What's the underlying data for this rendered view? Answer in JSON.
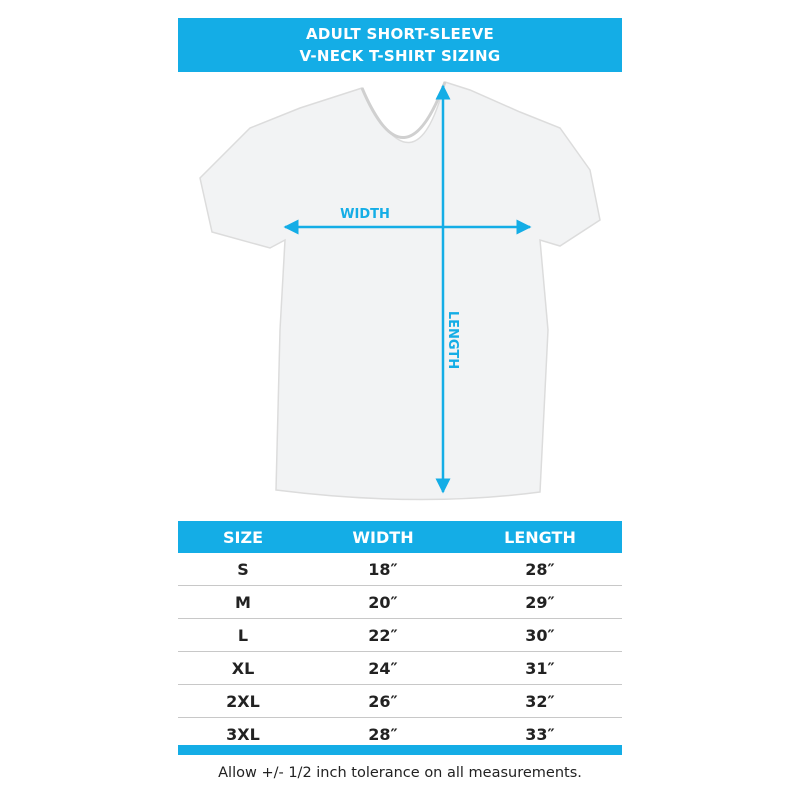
{
  "header": {
    "line1": "ADULT SHORT-SLEEVE",
    "line2": "V-NECK T-SHIRT SIZING"
  },
  "diagram": {
    "width_label": "WIDTH",
    "length_label": "LENGTH",
    "accent": "#14ade6"
  },
  "table": {
    "columns": [
      "SIZE",
      "WIDTH",
      "LENGTH"
    ],
    "rows": [
      [
        "S",
        "18″",
        "28″"
      ],
      [
        "M",
        "20″",
        "29″"
      ],
      [
        "L",
        "22″",
        "30″"
      ],
      [
        "XL",
        "24″",
        "31″"
      ],
      [
        "2XL",
        "26″",
        "32″"
      ],
      [
        "3XL",
        "28″",
        "33″"
      ]
    ]
  },
  "footnote": "Allow +/- 1/2 inch tolerance on all measurements."
}
